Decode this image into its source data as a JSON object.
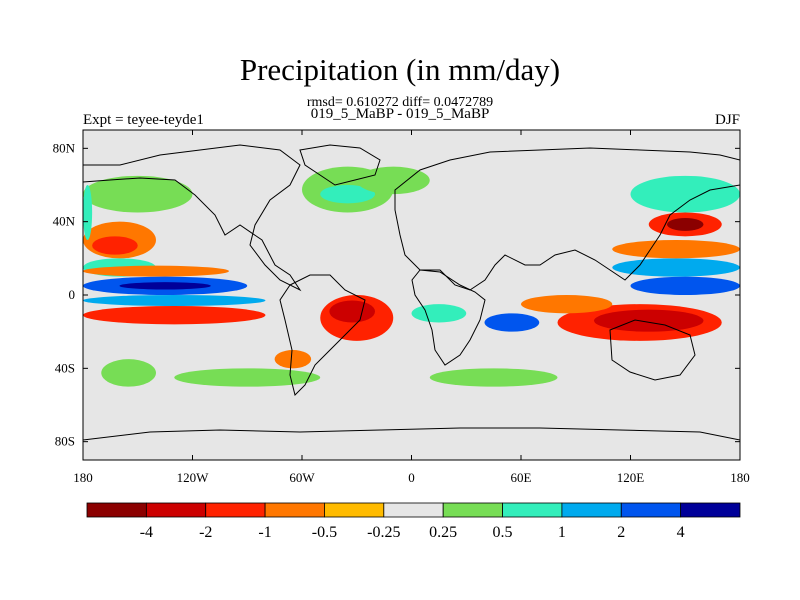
{
  "title": "Precipitation (in mm/day)",
  "subtitle_stats": "rmsd= 0.610272 diff= 0.0472789",
  "subtitle_cases": "019_5_MaBP - 019_5_MaBP",
  "left_label": "Expt = teyee-teyde1",
  "right_label": "DJF",
  "colors": {
    "background_ocean": "#e6e6e6",
    "coast": "#000000"
  },
  "chart_data": {
    "type": "heatmap",
    "map_projection": "cylindrical equidistant",
    "lon_ticks": [
      "180",
      "120W",
      "60W",
      "0",
      "60E",
      "120E",
      "180"
    ],
    "lat_ticks": [
      "80N",
      "40N",
      "0",
      "40S",
      "80S"
    ],
    "lon_range": [
      -180,
      180
    ],
    "lat_range": [
      -90,
      90
    ],
    "colorbar": {
      "labels": [
        "-4",
        "-2",
        "-1",
        "-0.5",
        "-0.25",
        "0.25",
        "0.5",
        "1",
        "2",
        "4"
      ],
      "colors": [
        "#8b0000",
        "#cc0000",
        "#ff2200",
        "#ff7700",
        "#ffbb00",
        "#e6e6e6",
        "#77dd55",
        "#33eebb",
        "#00aaee",
        "#0055ee",
        "#000099"
      ]
    },
    "anomaly_regions": [
      {
        "level": "-0.5",
        "lon": [
          -180,
          -140
        ],
        "lat": [
          20,
          40
        ]
      },
      {
        "level": "-1",
        "lon": [
          -175,
          -150
        ],
        "lat": [
          22,
          32
        ]
      },
      {
        "level": "0.25",
        "lon": [
          -180,
          -120
        ],
        "lat": [
          45,
          65
        ]
      },
      {
        "level": "0.5",
        "lon": [
          -180,
          -140
        ],
        "lat": [
          10,
          20
        ]
      },
      {
        "level": "-0.5",
        "lon": [
          -180,
          -100
        ],
        "lat": [
          10,
          16
        ]
      },
      {
        "level": "2",
        "lon": [
          -180,
          -90
        ],
        "lat": [
          0,
          10
        ]
      },
      {
        "level": "4",
        "lon": [
          -160,
          -110
        ],
        "lat": [
          3,
          7
        ]
      },
      {
        "level": "-1",
        "lon": [
          -180,
          -80
        ],
        "lat": [
          -16,
          -6
        ]
      },
      {
        "level": "1",
        "lon": [
          -180,
          -80
        ],
        "lat": [
          -6,
          0
        ]
      },
      {
        "level": "-1",
        "lon": [
          -50,
          -10
        ],
        "lat": [
          -25,
          0
        ]
      },
      {
        "level": "-2",
        "lon": [
          -45,
          -20
        ],
        "lat": [
          -15,
          -3
        ]
      },
      {
        "level": "-0.5",
        "lon": [
          -75,
          -55
        ],
        "lat": [
          -40,
          -30
        ]
      },
      {
        "level": "0.25",
        "lon": [
          -60,
          -10
        ],
        "lat": [
          45,
          70
        ]
      },
      {
        "level": "0.5",
        "lon": [
          -50,
          -20
        ],
        "lat": [
          50,
          60
        ]
      },
      {
        "level": "0.25",
        "lon": [
          -30,
          10
        ],
        "lat": [
          55,
          70
        ]
      },
      {
        "level": "0.5",
        "lon": [
          0,
          30
        ],
        "lat": [
          -15,
          -5
        ]
      },
      {
        "level": "2",
        "lon": [
          40,
          70
        ],
        "lat": [
          -20,
          -10
        ]
      },
      {
        "level": "-1",
        "lon": [
          80,
          170
        ],
        "lat": [
          -25,
          -5
        ]
      },
      {
        "level": "-2",
        "lon": [
          100,
          160
        ],
        "lat": [
          -20,
          -8
        ]
      },
      {
        "level": "-0.5",
        "lon": [
          60,
          110
        ],
        "lat": [
          -10,
          0
        ]
      },
      {
        "level": "2",
        "lon": [
          120,
          180
        ],
        "lat": [
          0,
          10
        ]
      },
      {
        "level": "1",
        "lon": [
          110,
          180
        ],
        "lat": [
          10,
          20
        ]
      },
      {
        "level": "-0.5",
        "lon": [
          110,
          180
        ],
        "lat": [
          20,
          30
        ]
      },
      {
        "level": "-1",
        "lon": [
          130,
          170
        ],
        "lat": [
          32,
          45
        ]
      },
      {
        "level": "-4",
        "lon": [
          140,
          160
        ],
        "lat": [
          35,
          42
        ]
      },
      {
        "level": "0.5",
        "lon": [
          120,
          180
        ],
        "lat": [
          45,
          65
        ]
      },
      {
        "level": "0.25",
        "lon": [
          -130,
          -50
        ],
        "lat": [
          -50,
          -40
        ]
      },
      {
        "level": "0.25",
        "lon": [
          10,
          80
        ],
        "lat": [
          -50,
          -40
        ]
      },
      {
        "level": "0.25",
        "lon": [
          -170,
          -140
        ],
        "lat": [
          -50,
          -35
        ]
      },
      {
        "level": "0.5",
        "lon": [
          -180,
          -175
        ],
        "lat": [
          30,
          60
        ]
      }
    ]
  }
}
